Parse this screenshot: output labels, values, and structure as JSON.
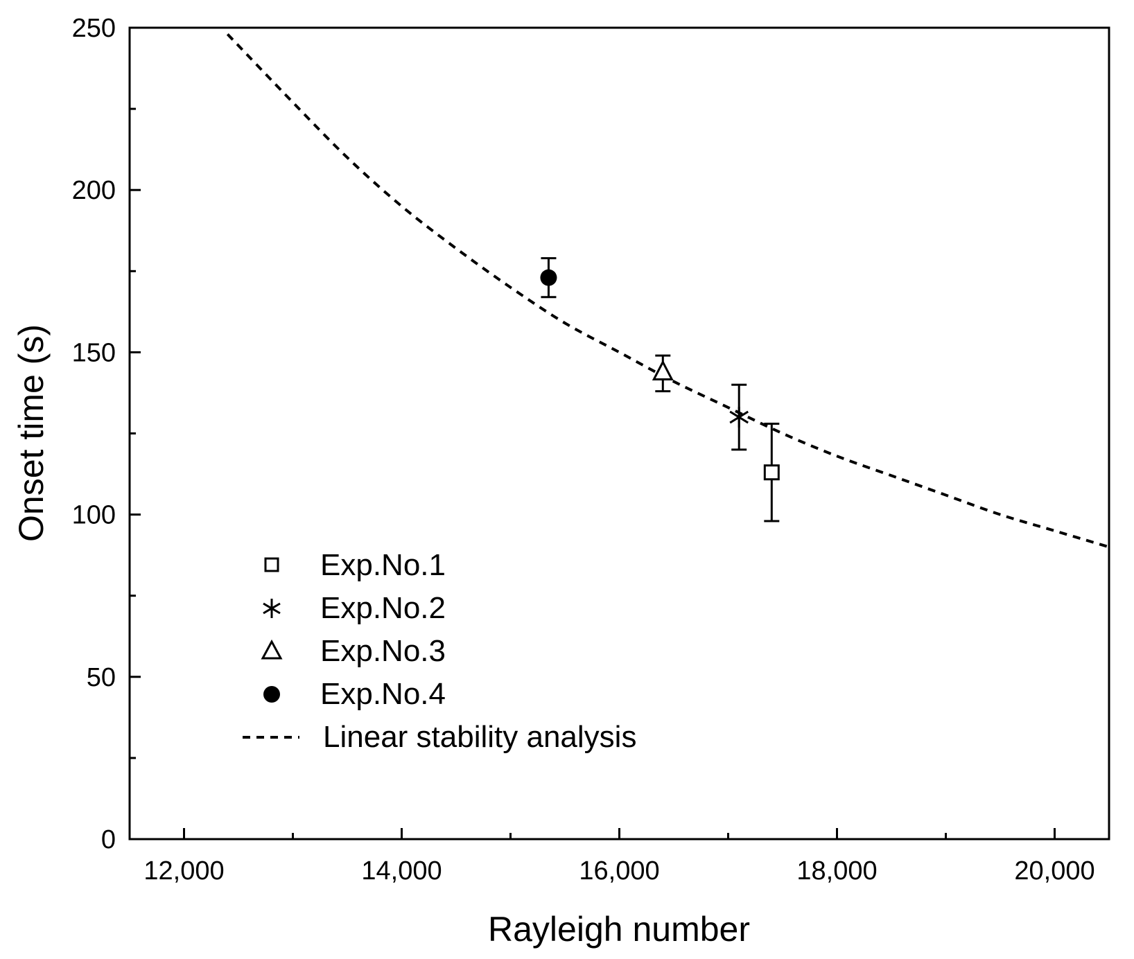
{
  "chart_data": {
    "type": "scatter",
    "xlabel": "Rayleigh number",
    "ylabel": "Onset time (s)",
    "xlim": [
      11500,
      20500
    ],
    "ylim": [
      0,
      250
    ],
    "x_ticks": [
      12000,
      14000,
      16000,
      18000,
      20000
    ],
    "x_tick_labels": [
      "12,000",
      "14,000",
      "16,000",
      "18,000",
      "20,000"
    ],
    "x_minor_ticks": [
      13000,
      15000,
      17000,
      19000
    ],
    "y_ticks": [
      0,
      50,
      100,
      150,
      200,
      250
    ],
    "y_tick_labels": [
      "0",
      "50",
      "100",
      "150",
      "200",
      "250"
    ],
    "y_minor_ticks": [
      25,
      75,
      125,
      175,
      225
    ],
    "grid": false,
    "legend_position": "bottom-left",
    "series": [
      {
        "name": "Exp.No.1",
        "marker": "open-square",
        "x": 17400,
        "y": 113,
        "error": [
          98,
          128
        ]
      },
      {
        "name": "Exp.No.2",
        "marker": "asterisk",
        "x": 17100,
        "y": 130,
        "error": [
          120,
          140
        ]
      },
      {
        "name": "Exp.No.3",
        "marker": "open-triangle",
        "x": 16400,
        "y": 144,
        "error": [
          138,
          149
        ]
      },
      {
        "name": "Exp.No.4",
        "marker": "filled-circle",
        "x": 15350,
        "y": 173,
        "error": [
          167,
          179
        ]
      }
    ],
    "curve": {
      "name": "Linear stability analysis",
      "style": "dashed",
      "x": [
        12400,
        13000,
        13500,
        14000,
        14500,
        15000,
        15500,
        16000,
        16500,
        17000,
        17500,
        18000,
        18500,
        19000,
        19500,
        20000,
        20500
      ],
      "y": [
        248,
        227,
        210,
        195,
        182,
        170,
        159,
        150,
        141,
        133,
        125,
        118,
        112,
        106,
        100,
        95,
        90
      ]
    }
  }
}
